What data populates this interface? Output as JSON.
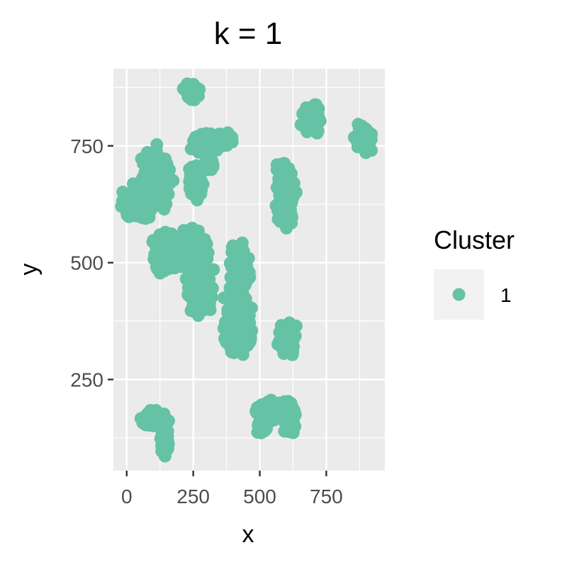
{
  "chart_data": {
    "type": "scatter",
    "title": "k = 1",
    "xlabel": "x",
    "ylabel": "y",
    "xlim": [
      -50,
      970
    ],
    "ylim": [
      55,
      915
    ],
    "x_ticks": [
      0,
      250,
      500,
      750
    ],
    "y_ticks": [
      250,
      500,
      750
    ],
    "grid": true,
    "legend": {
      "title": "Cluster",
      "placement": "right",
      "entries": [
        "1"
      ]
    },
    "colors": {
      "cluster_1": "#66C2A5",
      "panel": "#EBEBEB",
      "grid": "#FFFFFF"
    },
    "series": [
      {
        "name": "1",
        "clusters": [
          {
            "x": 245,
            "y": 865,
            "sx": 22,
            "sy": 14,
            "n": 70
          },
          {
            "x": 695,
            "y": 808,
            "sx": 28,
            "sy": 22,
            "n": 110
          },
          {
            "x": 890,
            "y": 765,
            "sx": 25,
            "sy": 22,
            "n": 90
          },
          {
            "x": 300,
            "y": 755,
            "sx": 45,
            "sy": 18,
            "n": 140
          },
          {
            "x": 365,
            "y": 765,
            "sx": 25,
            "sy": 12,
            "n": 60
          },
          {
            "x": 310,
            "y": 712,
            "sx": 12,
            "sy": 14,
            "n": 35
          },
          {
            "x": 260,
            "y": 670,
            "sx": 22,
            "sy": 35,
            "n": 110
          },
          {
            "x": 110,
            "y": 680,
            "sx": 45,
            "sy": 45,
            "n": 260
          },
          {
            "x": 40,
            "y": 625,
            "sx": 40,
            "sy": 28,
            "n": 180
          },
          {
            "x": 595,
            "y": 650,
            "sx": 28,
            "sy": 55,
            "n": 260
          },
          {
            "x": 145,
            "y": 520,
            "sx": 40,
            "sy": 35,
            "n": 190
          },
          {
            "x": 245,
            "y": 530,
            "sx": 35,
            "sy": 32,
            "n": 160
          },
          {
            "x": 275,
            "y": 450,
            "sx": 35,
            "sy": 50,
            "n": 280
          },
          {
            "x": 425,
            "y": 490,
            "sx": 28,
            "sy": 42,
            "n": 190
          },
          {
            "x": 420,
            "y": 375,
            "sx": 38,
            "sy": 55,
            "n": 330
          },
          {
            "x": 605,
            "y": 340,
            "sx": 25,
            "sy": 28,
            "n": 120
          },
          {
            "x": 105,
            "y": 165,
            "sx": 35,
            "sy": 14,
            "n": 90
          },
          {
            "x": 145,
            "y": 120,
            "sx": 15,
            "sy": 25,
            "n": 70
          },
          {
            "x": 550,
            "y": 185,
            "sx": 50,
            "sy": 15,
            "n": 150
          },
          {
            "x": 510,
            "y": 150,
            "sx": 18,
            "sy": 14,
            "n": 50
          },
          {
            "x": 615,
            "y": 165,
            "sx": 18,
            "sy": 28,
            "n": 80
          }
        ]
      }
    ]
  }
}
